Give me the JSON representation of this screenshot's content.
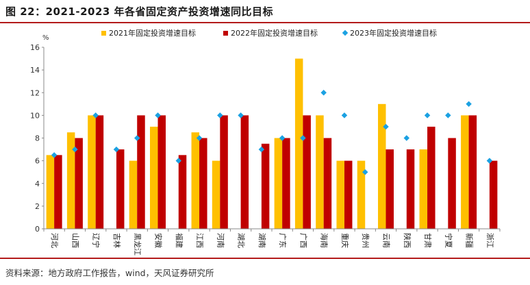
{
  "figure_title": "图 22：2021-2023 年各省固定资产投资增速同比目标",
  "source": "资料来源：地方政府工作报告，wind，天风证券研究所",
  "colors": {
    "s2021": "#ffc000",
    "s2022": "#c00000",
    "s2023": "#1ba1e2",
    "rule": "#b31b1b"
  },
  "chart_data": {
    "type": "bar",
    "title": "",
    "xlabel": "",
    "ylabel": "%",
    "ylim": [
      0,
      16
    ],
    "yticks": [
      0,
      2,
      4,
      6,
      8,
      10,
      12,
      14,
      16
    ],
    "grid": false,
    "legend_position": "top",
    "categories": [
      "河北",
      "山西",
      "辽宁",
      "吉林",
      "黑龙江",
      "安徽",
      "福建",
      "江西",
      "河南",
      "湖北",
      "湖南",
      "广东",
      "广西",
      "海南",
      "重庆",
      "贵州",
      "云南",
      "陕西",
      "甘肃",
      "宁夏",
      "新疆",
      "浙江"
    ],
    "series": [
      {
        "name": "2021年固定投资增速目标",
        "kind": "bar",
        "color": "#ffc000",
        "values": [
          6.5,
          8.5,
          10,
          null,
          6,
          9,
          null,
          8.5,
          6,
          null,
          null,
          8,
          15,
          10,
          6,
          6,
          11,
          null,
          7,
          null,
          10,
          null
        ]
      },
      {
        "name": "2022年固定投资增速目标",
        "kind": "bar",
        "color": "#c00000",
        "values": [
          6.5,
          8,
          10,
          7,
          10,
          10,
          6.5,
          8,
          10,
          10,
          7.5,
          8,
          10,
          8,
          6,
          null,
          7,
          7,
          9,
          8,
          10,
          6
        ]
      },
      {
        "name": "2023年固定投资增速目标",
        "kind": "marker",
        "color": "#1ba1e2",
        "values": [
          6.5,
          7,
          10,
          7,
          8,
          10,
          6,
          8,
          10,
          10,
          7,
          8,
          8,
          12,
          10,
          5,
          9,
          8,
          10,
          10,
          11,
          6
        ]
      }
    ]
  }
}
